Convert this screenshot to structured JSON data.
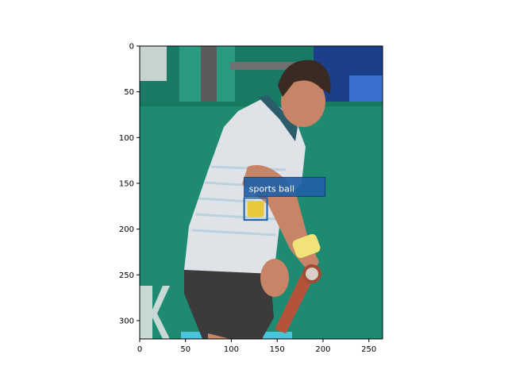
{
  "image": {
    "description": "tennis player swinging a racket on a green court",
    "extent_x": [
      0,
      265
    ],
    "extent_y": [
      0,
      320
    ]
  },
  "axes": {
    "xlim": [
      0,
      265
    ],
    "ylim": [
      320,
      0
    ],
    "xticks": [
      0,
      50,
      100,
      150,
      200,
      250
    ],
    "yticks": [
      0,
      50,
      100,
      150,
      200,
      250,
      300
    ],
    "xtick_labels": [
      "0",
      "50",
      "100",
      "150",
      "200",
      "250"
    ],
    "ytick_labels": [
      "0",
      "50",
      "100",
      "150",
      "200",
      "250",
      "300"
    ]
  },
  "detection": {
    "label": "sports ball",
    "box": {
      "x0": 114,
      "y0": 166,
      "x1": 139,
      "y1": 190
    },
    "box_color": "#1f5fa8",
    "label_bg": "#1f5fa8"
  },
  "colors": {
    "court_green": "#1f8a72",
    "court_dark": "#166b58",
    "shirt": "#dfe3e8",
    "shorts": "#3b3b3b",
    "skin": "#c78466",
    "hair": "#3a2a22",
    "ball": "#e8c83a"
  }
}
